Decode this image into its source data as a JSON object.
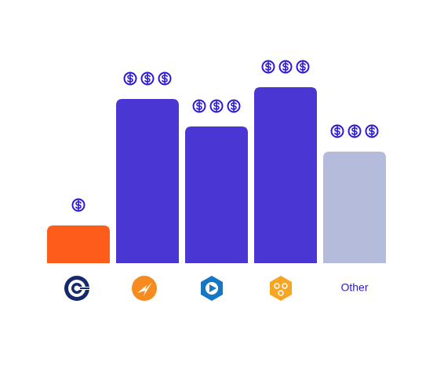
{
  "chart_data": {
    "type": "bar",
    "categories": [
      null,
      null,
      null,
      null,
      "Other"
    ],
    "values": [
      48,
      209,
      174,
      224,
      142
    ],
    "colors": [
      "#fe5c1a",
      "#4a36d3",
      "#4a36d3",
      "#4a36d3",
      "#b5bbda"
    ],
    "cost_levels": [
      1,
      3,
      3,
      3,
      3
    ],
    "cost_color": "#2c18d8",
    "ylim": [
      0,
      300
    ]
  }
}
